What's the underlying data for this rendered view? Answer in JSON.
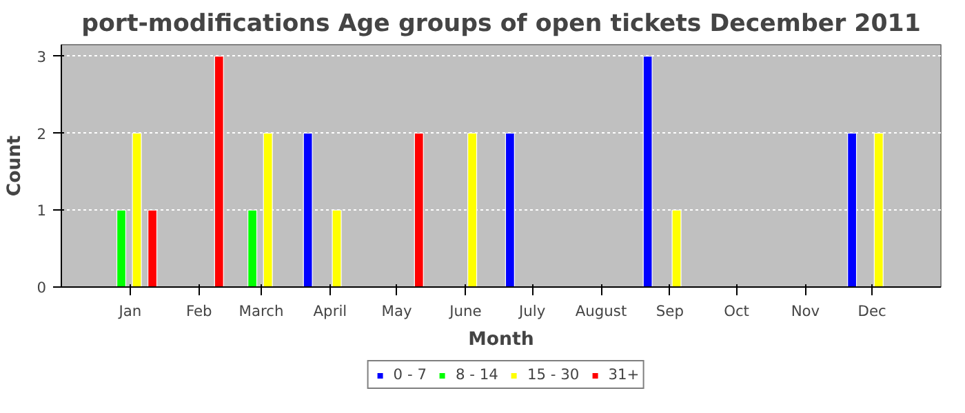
{
  "chart_data": {
    "type": "bar",
    "title": "port-modifications Age groups of open tickets December 2011",
    "xlabel": "Month",
    "ylabel": "Count",
    "xlim": [
      "2010-12-01",
      "2012-01-01"
    ],
    "xticks": [
      {
        "value": "2011-01-01",
        "label": "Jan"
      },
      {
        "value": "2011-02-01",
        "label": "Feb"
      },
      {
        "value": "2011-03-01",
        "label": "March"
      },
      {
        "value": "2011-04-01",
        "label": "April"
      },
      {
        "value": "2011-05-01",
        "label": "May"
      },
      {
        "value": "2011-06-01",
        "label": "June"
      },
      {
        "value": "2011-07-01",
        "label": "July"
      },
      {
        "value": "2011-08-01",
        "label": "August"
      },
      {
        "value": "2011-09-01",
        "label": "Sep"
      },
      {
        "value": "2011-10-01",
        "label": "Oct"
      },
      {
        "value": "2011-11-01",
        "label": "Nov"
      },
      {
        "value": "2011-12-01",
        "label": "Dec"
      }
    ],
    "ylim": [
      0,
      3.15
    ],
    "yticks": [
      0,
      1,
      2,
      3
    ],
    "grid": "y",
    "legend": "bottom",
    "series": [
      {
        "name": "0 - 7",
        "color": "#0000ff",
        "x": [
          "2011-03-22",
          "2011-06-21",
          "2011-08-22",
          "2011-11-22"
        ],
        "values": [
          2,
          2,
          3,
          2
        ]
      },
      {
        "name": "8 - 14",
        "color": "#00ff00",
        "x": [
          "2010-12-28",
          "2011-02-25"
        ],
        "values": [
          1,
          1
        ]
      },
      {
        "name": "15 - 30",
        "color": "#ffff00",
        "x": [
          "2011-01-04",
          "2011-03-04",
          "2011-04-04",
          "2011-06-04",
          "2011-09-04",
          "2011-12-04"
        ],
        "values": [
          2,
          2,
          1,
          2,
          1,
          2
        ]
      },
      {
        "name": "31+",
        "color": "#ff0000",
        "x": [
          "2011-01-11",
          "2011-02-10",
          "2011-05-11"
        ],
        "values": [
          1,
          3,
          2
        ]
      }
    ]
  }
}
